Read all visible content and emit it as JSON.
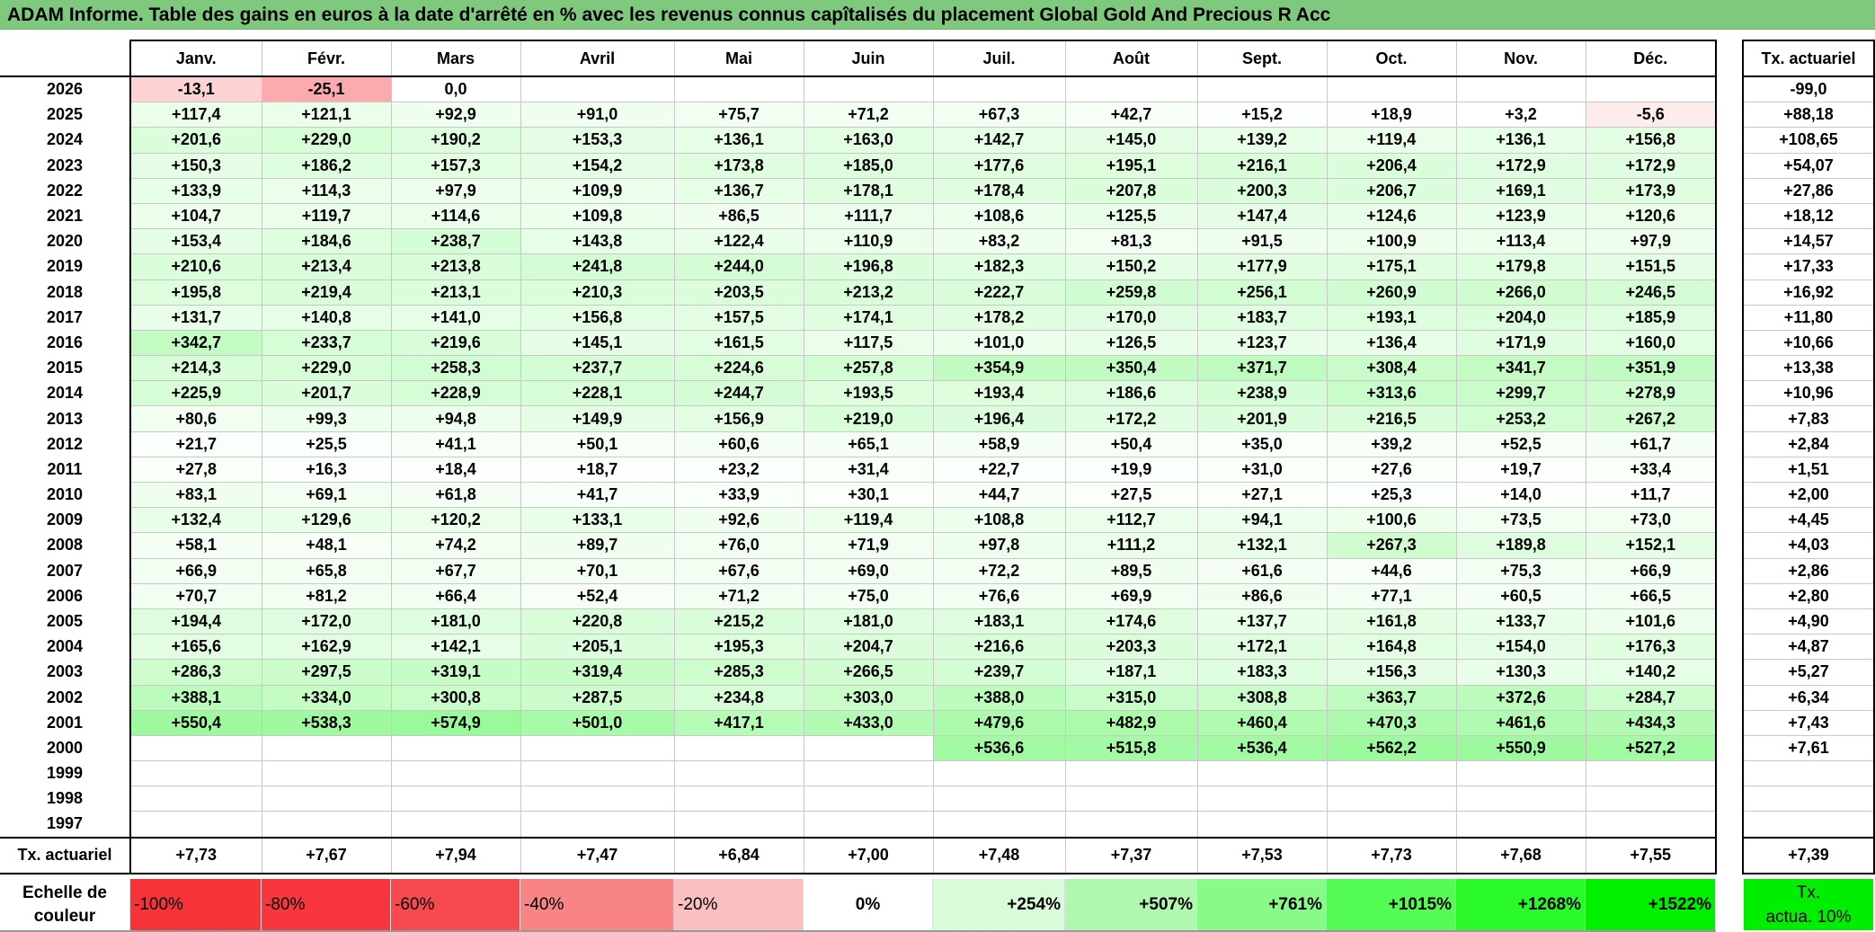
{
  "title": "ADAM Informe. Table des gains en euros à la date d'arrêté en % avec les revenus connus capîtalisés du placement Global Gold And Precious R Acc",
  "months": [
    "Janv.",
    "Févr.",
    "Mars",
    "Avril",
    "Mai",
    "Juin",
    "Juil.",
    "Août",
    "Sept.",
    "Oct.",
    "Nov.",
    "Déc."
  ],
  "tx_header": "Tx. actuariel",
  "rows": [
    {
      "year": "2026",
      "values": [
        "-13,1",
        "-25,1",
        "0,0",
        "",
        "",
        "",
        "",
        "",
        "",
        "",
        "",
        ""
      ],
      "tx": "-99,0"
    },
    {
      "year": "2025",
      "values": [
        "+117,4",
        "+121,1",
        "+92,9",
        "+91,0",
        "+75,7",
        "+71,2",
        "+67,3",
        "+42,7",
        "+15,2",
        "+18,9",
        "+3,2",
        "-5,6"
      ],
      "tx": "+88,18"
    },
    {
      "year": "2024",
      "values": [
        "+201,6",
        "+229,0",
        "+190,2",
        "+153,3",
        "+136,1",
        "+163,0",
        "+142,7",
        "+145,0",
        "+139,2",
        "+119,4",
        "+136,1",
        "+156,8"
      ],
      "tx": "+108,65"
    },
    {
      "year": "2023",
      "values": [
        "+150,3",
        "+186,2",
        "+157,3",
        "+154,2",
        "+173,8",
        "+185,0",
        "+177,6",
        "+195,1",
        "+216,1",
        "+206,4",
        "+172,9",
        "+172,9"
      ],
      "tx": "+54,07"
    },
    {
      "year": "2022",
      "values": [
        "+133,9",
        "+114,3",
        "+97,9",
        "+109,9",
        "+136,7",
        "+178,1",
        "+178,4",
        "+207,8",
        "+200,3",
        "+206,7",
        "+169,1",
        "+173,9"
      ],
      "tx": "+27,86"
    },
    {
      "year": "2021",
      "values": [
        "+104,7",
        "+119,7",
        "+114,6",
        "+109,8",
        "+86,5",
        "+111,7",
        "+108,6",
        "+125,5",
        "+147,4",
        "+124,6",
        "+123,9",
        "+120,6"
      ],
      "tx": "+18,12"
    },
    {
      "year": "2020",
      "values": [
        "+153,4",
        "+184,6",
        "+238,7",
        "+143,8",
        "+122,4",
        "+110,9",
        "+83,2",
        "+81,3",
        "+91,5",
        "+100,9",
        "+113,4",
        "+97,9"
      ],
      "tx": "+14,57"
    },
    {
      "year": "2019",
      "values": [
        "+210,6",
        "+213,4",
        "+213,8",
        "+241,8",
        "+244,0",
        "+196,8",
        "+182,3",
        "+150,2",
        "+177,9",
        "+175,1",
        "+179,8",
        "+151,5"
      ],
      "tx": "+17,33"
    },
    {
      "year": "2018",
      "values": [
        "+195,8",
        "+219,4",
        "+213,1",
        "+210,3",
        "+203,5",
        "+213,2",
        "+222,7",
        "+259,8",
        "+256,1",
        "+260,9",
        "+266,0",
        "+246,5"
      ],
      "tx": "+16,92"
    },
    {
      "year": "2017",
      "values": [
        "+131,7",
        "+140,8",
        "+141,0",
        "+156,8",
        "+157,5",
        "+174,1",
        "+178,2",
        "+170,0",
        "+183,7",
        "+193,1",
        "+204,0",
        "+185,9"
      ],
      "tx": "+11,80"
    },
    {
      "year": "2016",
      "values": [
        "+342,7",
        "+233,7",
        "+219,6",
        "+145,1",
        "+161,5",
        "+117,5",
        "+101,0",
        "+126,5",
        "+123,7",
        "+136,4",
        "+171,9",
        "+160,0"
      ],
      "tx": "+10,66"
    },
    {
      "year": "2015",
      "values": [
        "+214,3",
        "+229,0",
        "+258,3",
        "+237,7",
        "+224,6",
        "+257,8",
        "+354,9",
        "+350,4",
        "+371,7",
        "+308,4",
        "+341,7",
        "+351,9"
      ],
      "tx": "+13,38"
    },
    {
      "year": "2014",
      "values": [
        "+225,9",
        "+201,7",
        "+228,9",
        "+228,1",
        "+244,7",
        "+193,5",
        "+193,4",
        "+186,6",
        "+238,9",
        "+313,6",
        "+299,7",
        "+278,9"
      ],
      "tx": "+10,96"
    },
    {
      "year": "2013",
      "values": [
        "+80,6",
        "+99,3",
        "+94,8",
        "+149,9",
        "+156,9",
        "+219,0",
        "+196,4",
        "+172,2",
        "+201,9",
        "+216,5",
        "+253,2",
        "+267,2"
      ],
      "tx": "+7,83"
    },
    {
      "year": "2012",
      "values": [
        "+21,7",
        "+25,5",
        "+41,1",
        "+50,1",
        "+60,6",
        "+65,1",
        "+58,9",
        "+50,4",
        "+35,0",
        "+39,2",
        "+52,5",
        "+61,7"
      ],
      "tx": "+2,84"
    },
    {
      "year": "2011",
      "values": [
        "+27,8",
        "+16,3",
        "+18,4",
        "+18,7",
        "+23,2",
        "+31,4",
        "+22,7",
        "+19,9",
        "+31,0",
        "+27,6",
        "+19,7",
        "+33,4"
      ],
      "tx": "+1,51"
    },
    {
      "year": "2010",
      "values": [
        "+83,1",
        "+69,1",
        "+61,8",
        "+41,7",
        "+33,9",
        "+30,1",
        "+44,7",
        "+27,5",
        "+27,1",
        "+25,3",
        "+14,0",
        "+11,7"
      ],
      "tx": "+2,00"
    },
    {
      "year": "2009",
      "values": [
        "+132,4",
        "+129,6",
        "+120,2",
        "+133,1",
        "+92,6",
        "+119,4",
        "+108,8",
        "+112,7",
        "+94,1",
        "+100,6",
        "+73,5",
        "+73,0"
      ],
      "tx": "+4,45"
    },
    {
      "year": "2008",
      "values": [
        "+58,1",
        "+48,1",
        "+74,2",
        "+89,7",
        "+76,0",
        "+71,9",
        "+97,8",
        "+111,2",
        "+132,1",
        "+267,3",
        "+189,8",
        "+152,1"
      ],
      "tx": "+4,03"
    },
    {
      "year": "2007",
      "values": [
        "+66,9",
        "+65,8",
        "+67,7",
        "+70,1",
        "+67,6",
        "+69,0",
        "+72,2",
        "+89,5",
        "+61,6",
        "+44,6",
        "+75,3",
        "+66,9"
      ],
      "tx": "+2,86"
    },
    {
      "year": "2006",
      "values": [
        "+70,7",
        "+81,2",
        "+66,4",
        "+52,4",
        "+71,2",
        "+75,0",
        "+76,6",
        "+69,9",
        "+86,6",
        "+77,1",
        "+60,5",
        "+66,5"
      ],
      "tx": "+2,80"
    },
    {
      "year": "2005",
      "values": [
        "+194,4",
        "+172,0",
        "+181,0",
        "+220,8",
        "+215,2",
        "+181,0",
        "+183,1",
        "+174,6",
        "+137,7",
        "+161,8",
        "+133,7",
        "+101,6"
      ],
      "tx": "+4,90"
    },
    {
      "year": "2004",
      "values": [
        "+165,6",
        "+162,9",
        "+142,1",
        "+205,1",
        "+195,3",
        "+204,7",
        "+216,6",
        "+203,3",
        "+172,1",
        "+164,8",
        "+154,0",
        "+176,3"
      ],
      "tx": "+4,87"
    },
    {
      "year": "2003",
      "values": [
        "+286,3",
        "+297,5",
        "+319,1",
        "+319,4",
        "+285,3",
        "+266,5",
        "+239,7",
        "+187,1",
        "+183,3",
        "+156,3",
        "+130,3",
        "+140,2"
      ],
      "tx": "+5,27"
    },
    {
      "year": "2002",
      "values": [
        "+388,1",
        "+334,0",
        "+300,8",
        "+287,5",
        "+234,8",
        "+303,0",
        "+388,0",
        "+315,0",
        "+308,8",
        "+363,7",
        "+372,6",
        "+284,7"
      ],
      "tx": "+6,34"
    },
    {
      "year": "2001",
      "values": [
        "+550,4",
        "+538,3",
        "+574,9",
        "+501,0",
        "+417,1",
        "+433,0",
        "+479,6",
        "+482,9",
        "+460,4",
        "+470,3",
        "+461,6",
        "+434,3"
      ],
      "tx": "+7,43"
    },
    {
      "year": "2000",
      "values": [
        "",
        "",
        "",
        "",
        "",
        "",
        "+536,6",
        "+515,8",
        "+536,4",
        "+562,2",
        "+550,9",
        "+527,2"
      ],
      "tx": "+7,61"
    },
    {
      "year": "1999",
      "values": [
        "",
        "",
        "",
        "",
        "",
        "",
        "",
        "",
        "",
        "",
        "",
        ""
      ],
      "tx": ""
    },
    {
      "year": "1998",
      "values": [
        "",
        "",
        "",
        "",
        "",
        "",
        "",
        "",
        "",
        "",
        "",
        ""
      ],
      "tx": ""
    },
    {
      "year": "1997",
      "values": [
        "",
        "",
        "",
        "",
        "",
        "",
        "",
        "",
        "",
        "",
        "",
        ""
      ],
      "tx": ""
    }
  ],
  "footer": {
    "label": "Tx. actuariel",
    "values": [
      "+7,73",
      "+7,67",
      "+7,94",
      "+7,47",
      "+6,84",
      "+7,00",
      "+7,48",
      "+7,37",
      "+7,53",
      "+7,73",
      "+7,68",
      "+7,55"
    ],
    "tx": "+7,39"
  },
  "scale": {
    "label_line1": "Echelle de",
    "label_line2": "couleur",
    "steps": [
      {
        "label": "-100%",
        "color": "#f7333a",
        "align": "left"
      },
      {
        "label": "-80%",
        "color": "#f7363d",
        "align": "left"
      },
      {
        "label": "-60%",
        "color": "#f64a4f",
        "align": "left"
      },
      {
        "label": "-40%",
        "color": "#f88486",
        "align": "left"
      },
      {
        "label": "-20%",
        "color": "#fac0c0",
        "align": "left"
      },
      {
        "label": "0%",
        "color": "#ffffff",
        "align": "center"
      },
      {
        "label": "+254%",
        "color": "#d9fbd9",
        "align": "right"
      },
      {
        "label": "+507%",
        "color": "#b0f8b0",
        "align": "right"
      },
      {
        "label": "+761%",
        "color": "#88fa88",
        "align": "right"
      },
      {
        "label": "+1015%",
        "color": "#55fb55",
        "align": "right"
      },
      {
        "label": "+1268%",
        "color": "#2afa2a",
        "align": "right"
      },
      {
        "label": "+1522%",
        "color": "#00f000",
        "align": "right"
      }
    ],
    "tx_line1": "Tx.",
    "tx_line2": "actua. 10%",
    "tx_color": "#00ee00"
  },
  "colors": {
    "title_bg": "#7ec97e",
    "positive_max": "#00f000",
    "negative_max": "#f7333a"
  }
}
